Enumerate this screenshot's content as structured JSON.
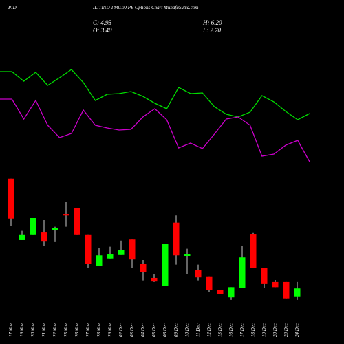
{
  "chart_data": {
    "type": "candlestick",
    "title_left": "PID",
    "title": "ILITIND 1440.00 PE Options  Chart MunafaSutra.com",
    "info": [
      "C: 4.95",
      "H: 6.20",
      "O: 3.40",
      "L: 2.70"
    ],
    "categories": [
      "17 Nov",
      "19 Nov",
      "20 Nov",
      "21 Nov",
      "22 Nov",
      "25 Nov",
      "26 Nov",
      "27 Nov",
      "28 Nov",
      "29 Nov",
      "02 Dec",
      "03 Dec",
      "04 Dec",
      "05 Dec",
      "06 Dec",
      "09 Dec",
      "10 Dec",
      "11 Dec",
      "12 Dec",
      "13 Dec",
      "16 Dec",
      "17 Dec",
      "18 Dec",
      "19 Dec",
      "20 Dec",
      "23 Dec",
      "24 Dec"
    ],
    "open": [
      26.4,
      14.4,
      15.5,
      16.0,
      16.3,
      19.5,
      20.6,
      15.5,
      9.3,
      10.8,
      11.6,
      14.5,
      9.8,
      7.0,
      5.5,
      17.8,
      11.3,
      8.6,
      7.3,
      4.7,
      3.2,
      5.1,
      15.6,
      8.9,
      6.2,
      6.2,
      3.4
    ],
    "high": [
      26.4,
      16.2,
      18.7,
      18.3,
      17.0,
      21.9,
      20.6,
      15.5,
      12.8,
      13.1,
      14.3,
      14.5,
      10.5,
      7.8,
      13.7,
      19.2,
      12.7,
      9.6,
      7.3,
      4.7,
      5.2,
      13.3,
      15.9,
      8.9,
      6.6,
      6.2,
      6.2
    ],
    "low": [
      17.2,
      14.4,
      15.5,
      13.2,
      14.0,
      17.0,
      15.5,
      8.9,
      9.3,
      10.8,
      11.6,
      8.9,
      6.5,
      6.2,
      5.5,
      9.6,
      7.8,
      6.5,
      4.3,
      3.8,
      2.7,
      5.1,
      9.0,
      5.1,
      5.2,
      3.0,
      2.7
    ],
    "close": [
      18.6,
      15.5,
      18.7,
      14.1,
      16.7,
      19.2,
      15.5,
      9.7,
      11.4,
      11.7,
      12.4,
      10.6,
      8.1,
      6.3,
      13.7,
      11.4,
      11.7,
      7.1,
      4.7,
      3.8,
      5.2,
      11.0,
      9.0,
      5.8,
      5.2,
      3.0,
      4.95
    ],
    "up_color": "#00ff00",
    "down_color": "#ff0000",
    "ylim": [
      0,
      30
    ],
    "y2lim": [
      0,
      170
    ],
    "series": [
      {
        "axis": "y2",
        "color": "#00dd00",
        "values": [
          146,
          146,
          132,
          145,
          126,
          137,
          149,
          130,
          104,
          113,
          114,
          117,
          110,
          100,
          92,
          123,
          114,
          115,
          95,
          84,
          80,
          87,
          111,
          102,
          88,
          76,
          85
        ]
      },
      {
        "axis": "y2",
        "color": "#cc00cc",
        "values": [
          106,
          106,
          77,
          104,
          68,
          50,
          56,
          90,
          68,
          64,
          61,
          62,
          80,
          92,
          76,
          35,
          42,
          34,
          55,
          77,
          80,
          68,
          23,
          26,
          39,
          46,
          15
        ]
      }
    ]
  }
}
